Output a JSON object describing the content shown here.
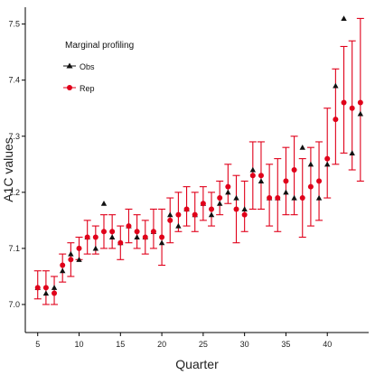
{
  "chart_data": {
    "type": "scatter",
    "title": "",
    "xlabel": "Quarter",
    "ylabel": "A1C values",
    "xlim": [
      3.5,
      45.0
    ],
    "ylim": [
      6.95,
      7.53
    ],
    "xticks": [
      5,
      10,
      15,
      20,
      25,
      30,
      35,
      40
    ],
    "yticks": [
      7.0,
      7.1,
      7.2,
      7.3,
      7.4,
      7.5
    ],
    "grid": false,
    "legend": {
      "title": "Marginal profiling",
      "placement": "top-left",
      "entries": [
        "Obs",
        "Rep"
      ]
    },
    "colors": {
      "obs": "#111111",
      "rep": "#e0001a",
      "axis": "#000000"
    },
    "series": [
      {
        "name": "Obs",
        "marker": "triangle",
        "x": [
          5,
          6,
          7,
          8,
          9,
          10,
          11,
          12,
          13,
          14,
          15,
          16,
          17,
          18,
          19,
          20,
          21,
          22,
          23,
          24,
          25,
          26,
          27,
          28,
          29,
          30,
          31,
          32,
          33,
          34,
          35,
          36,
          37,
          38,
          39,
          40,
          41,
          42,
          43,
          44
        ],
        "y": [
          7.03,
          7.02,
          7.03,
          7.06,
          7.09,
          7.08,
          7.12,
          7.1,
          7.18,
          7.12,
          7.11,
          7.14,
          7.12,
          7.12,
          7.13,
          7.11,
          7.16,
          7.14,
          7.17,
          7.16,
          7.18,
          7.16,
          7.18,
          7.2,
          7.19,
          7.17,
          7.24,
          7.22,
          7.19,
          7.19,
          7.2,
          7.19,
          7.28,
          7.25,
          7.19,
          7.25,
          7.39,
          7.51,
          7.27,
          7.34
        ]
      },
      {
        "name": "Rep",
        "marker": "circle",
        "x": [
          5,
          6,
          7,
          8,
          9,
          10,
          11,
          12,
          13,
          14,
          15,
          16,
          17,
          18,
          19,
          20,
          21,
          22,
          23,
          24,
          25,
          26,
          27,
          28,
          29,
          30,
          31,
          32,
          33,
          34,
          35,
          36,
          37,
          38,
          39,
          40,
          41,
          42,
          43,
          44
        ],
        "y": [
          7.03,
          7.03,
          7.02,
          7.07,
          7.08,
          7.1,
          7.12,
          7.12,
          7.13,
          7.13,
          7.11,
          7.14,
          7.13,
          7.12,
          7.13,
          7.12,
          7.15,
          7.16,
          7.17,
          7.16,
          7.18,
          7.17,
          7.19,
          7.21,
          7.17,
          7.16,
          7.23,
          7.23,
          7.19,
          7.19,
          7.22,
          7.24,
          7.19,
          7.21,
          7.22,
          7.26,
          7.33,
          7.36,
          7.35,
          7.36
        ],
        "lower": [
          7.01,
          7.0,
          7.0,
          7.04,
          7.05,
          7.08,
          7.09,
          7.09,
          7.1,
          7.1,
          7.08,
          7.11,
          7.1,
          7.09,
          7.1,
          7.07,
          7.11,
          7.13,
          7.14,
          7.13,
          7.15,
          7.14,
          7.16,
          7.18,
          7.11,
          7.13,
          7.17,
          7.17,
          7.14,
          7.13,
          7.16,
          7.16,
          7.12,
          7.14,
          7.15,
          7.19,
          7.25,
          7.27,
          7.24,
          7.22
        ],
        "upper": [
          7.06,
          7.06,
          7.05,
          7.09,
          7.11,
          7.12,
          7.15,
          7.14,
          7.16,
          7.16,
          7.14,
          7.17,
          7.16,
          7.15,
          7.17,
          7.17,
          7.19,
          7.2,
          7.21,
          7.2,
          7.21,
          7.2,
          7.22,
          7.25,
          7.23,
          7.22,
          7.29,
          7.29,
          7.25,
          7.26,
          7.28,
          7.3,
          7.26,
          7.28,
          7.29,
          7.35,
          7.42,
          7.46,
          7.47,
          7.51
        ]
      }
    ]
  }
}
